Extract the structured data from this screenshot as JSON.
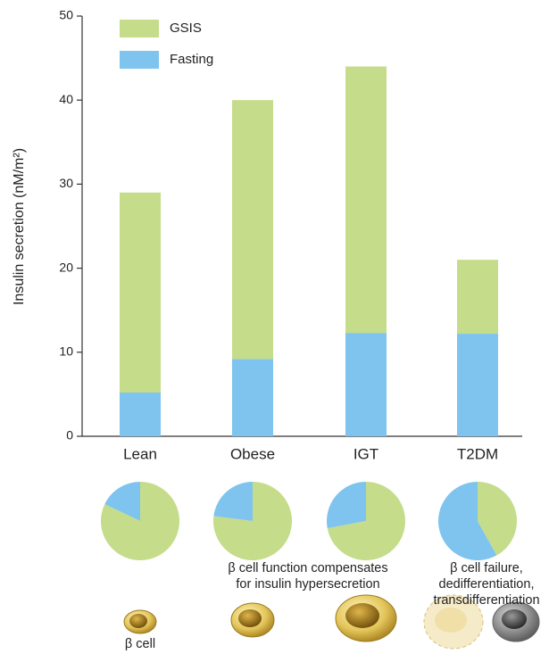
{
  "chart_data": {
    "type": "bar",
    "stacked": true,
    "ylabel": "Insulin secretion (nM/m²)",
    "categories": [
      "Lean",
      "Obese",
      "IGT",
      "T2DM"
    ],
    "series": [
      {
        "name": "Fasting",
        "color": "#7ec4ee",
        "values": [
          5.2,
          9.2,
          12.3,
          12.2
        ]
      },
      {
        "name": "GSIS",
        "color": "#c5dc8a",
        "values": [
          23.8,
          30.8,
          31.7,
          8.8
        ]
      }
    ],
    "ylim": [
      0,
      50
    ],
    "yticks": [
      0,
      10,
      20,
      30,
      40,
      50
    ],
    "pies": true,
    "annotations": [
      {
        "lines": [
          "β cell function compensates",
          "for insulin hypersecretion"
        ]
      },
      {
        "lines": [
          "β cell failure,",
          "dedifferentiation,",
          "transdifferentiation"
        ]
      },
      {
        "lines": [
          "β cell"
        ]
      }
    ]
  }
}
